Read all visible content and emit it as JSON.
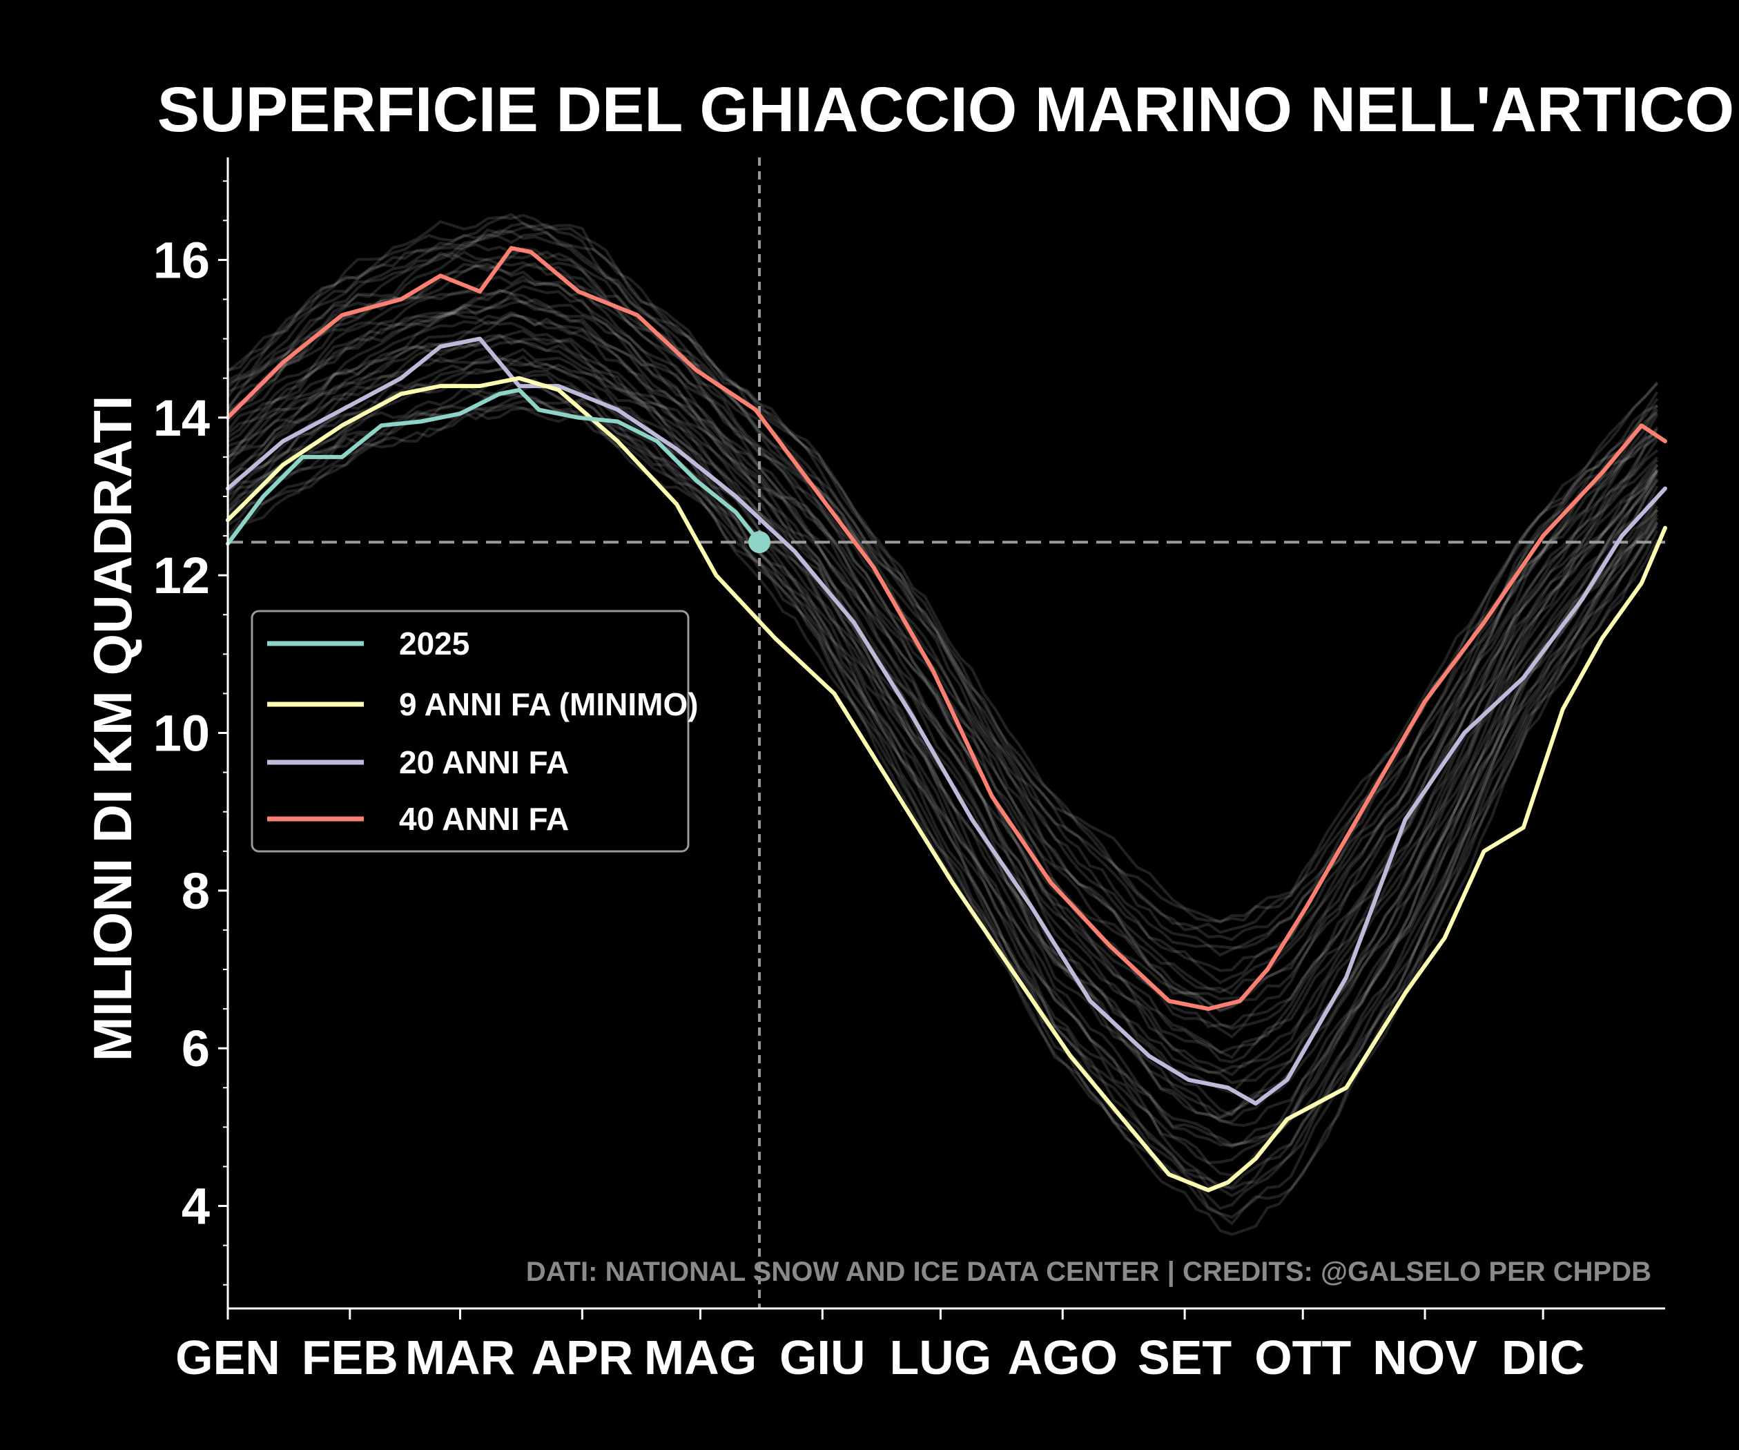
{
  "chart_data": {
    "type": "line",
    "title": "SUPERFICIE DEL GHIACCIO MARINO NELL'ARTICO",
    "xlabel": "",
    "ylabel": "MILIONI DI KM QUADRATI",
    "x_ticks": [
      "GEN",
      "FEB",
      "MAR",
      "APR",
      "MAG",
      "GIU",
      "LUG",
      "AGO",
      "SET",
      "OTT",
      "NOV",
      "DIC"
    ],
    "x_unit": "day_of_year",
    "xlim": [
      1,
      366
    ],
    "ylim": [
      2.7,
      17.3
    ],
    "y_ticks": [
      4,
      6,
      8,
      10,
      12,
      14,
      16
    ],
    "grid": false,
    "legend_position": "center-left",
    "credits": "DATI: NATIONAL SNOW AND ICE DATA CENTER  |  CREDITS: @GALSELO PER CHPDB",
    "current_marker": {
      "x": 136,
      "y": 12.42
    },
    "reference_lines": {
      "vertical_x": 136,
      "horizontal_y": 12.42
    },
    "colors": {
      "background": "#000000",
      "2025": "#8dd3c7",
      "9_anni_fa": "#ffffb3",
      "20_anni_fa": "#bebada",
      "40_anni_fa": "#fb8072",
      "historical": "#ffffff",
      "reference_line": "#9a9a9a"
    },
    "series": [
      {
        "name": "2025",
        "x": [
          1,
          10,
          20,
          30,
          40,
          50,
          60,
          70,
          75,
          80,
          90,
          100,
          110,
          120,
          130,
          136
        ],
        "y": [
          12.4,
          13.0,
          13.5,
          13.5,
          13.9,
          13.95,
          14.05,
          14.3,
          14.35,
          14.1,
          14.0,
          13.95,
          13.7,
          13.2,
          12.8,
          12.42
        ]
      },
      {
        "name": "9 ANNI FA (MINIMO)",
        "x": [
          1,
          15,
          30,
          45,
          55,
          65,
          75,
          85,
          100,
          115,
          125,
          140,
          155,
          170,
          185,
          200,
          215,
          230,
          240,
          250,
          255,
          262,
          270,
          285,
          300,
          310,
          320,
          330,
          340,
          350,
          360,
          366
        ],
        "y": [
          12.7,
          13.4,
          13.9,
          14.3,
          14.4,
          14.4,
          14.5,
          14.35,
          13.7,
          12.9,
          12.0,
          11.2,
          10.5,
          9.3,
          8.1,
          7.0,
          5.9,
          5.0,
          4.4,
          4.2,
          4.3,
          4.6,
          5.1,
          5.5,
          6.7,
          7.4,
          8.5,
          8.8,
          10.3,
          11.2,
          11.9,
          12.6
        ]
      },
      {
        "name": "20 ANNI FA",
        "x": [
          1,
          15,
          30,
          45,
          55,
          65,
          75,
          85,
          100,
          115,
          130,
          145,
          160,
          175,
          190,
          205,
          220,
          235,
          245,
          255,
          262,
          270,
          285,
          300,
          315,
          330,
          345,
          355,
          366
        ],
        "y": [
          13.1,
          13.7,
          14.1,
          14.5,
          14.9,
          15.0,
          14.4,
          14.4,
          14.1,
          13.6,
          13.0,
          12.3,
          11.4,
          10.2,
          8.9,
          7.8,
          6.6,
          5.9,
          5.6,
          5.5,
          5.3,
          5.6,
          6.9,
          8.9,
          10.0,
          10.7,
          11.7,
          12.5,
          13.1
        ]
      },
      {
        "name": "40 ANNI FA",
        "x": [
          1,
          15,
          30,
          45,
          55,
          65,
          73,
          78,
          90,
          105,
          120,
          135,
          150,
          165,
          180,
          195,
          210,
          225,
          240,
          250,
          258,
          265,
          275,
          290,
          305,
          320,
          335,
          350,
          360,
          366
        ],
        "y": [
          14.0,
          14.7,
          15.3,
          15.5,
          15.8,
          15.6,
          16.15,
          16.1,
          15.6,
          15.3,
          14.6,
          14.1,
          13.1,
          12.1,
          10.8,
          9.2,
          8.1,
          7.3,
          6.6,
          6.5,
          6.6,
          7.0,
          7.8,
          9.1,
          10.4,
          11.4,
          12.5,
          13.3,
          13.9,
          13.7
        ]
      }
    ],
    "historical_envelope": {
      "x": [
        1,
        30,
        60,
        75,
        90,
        120,
        150,
        180,
        210,
        240,
        255,
        270,
        300,
        330,
        366
      ],
      "y_low": [
        12.5,
        13.4,
        13.9,
        14.0,
        13.9,
        12.9,
        11.1,
        8.6,
        5.9,
        4.2,
        3.6,
        4.1,
        6.6,
        9.9,
        12.6
      ],
      "y_high": [
        14.6,
        15.9,
        16.5,
        16.6,
        16.4,
        15.0,
        13.6,
        11.6,
        9.3,
        7.9,
        7.7,
        8.1,
        10.1,
        12.6,
        14.5
      ]
    }
  }
}
